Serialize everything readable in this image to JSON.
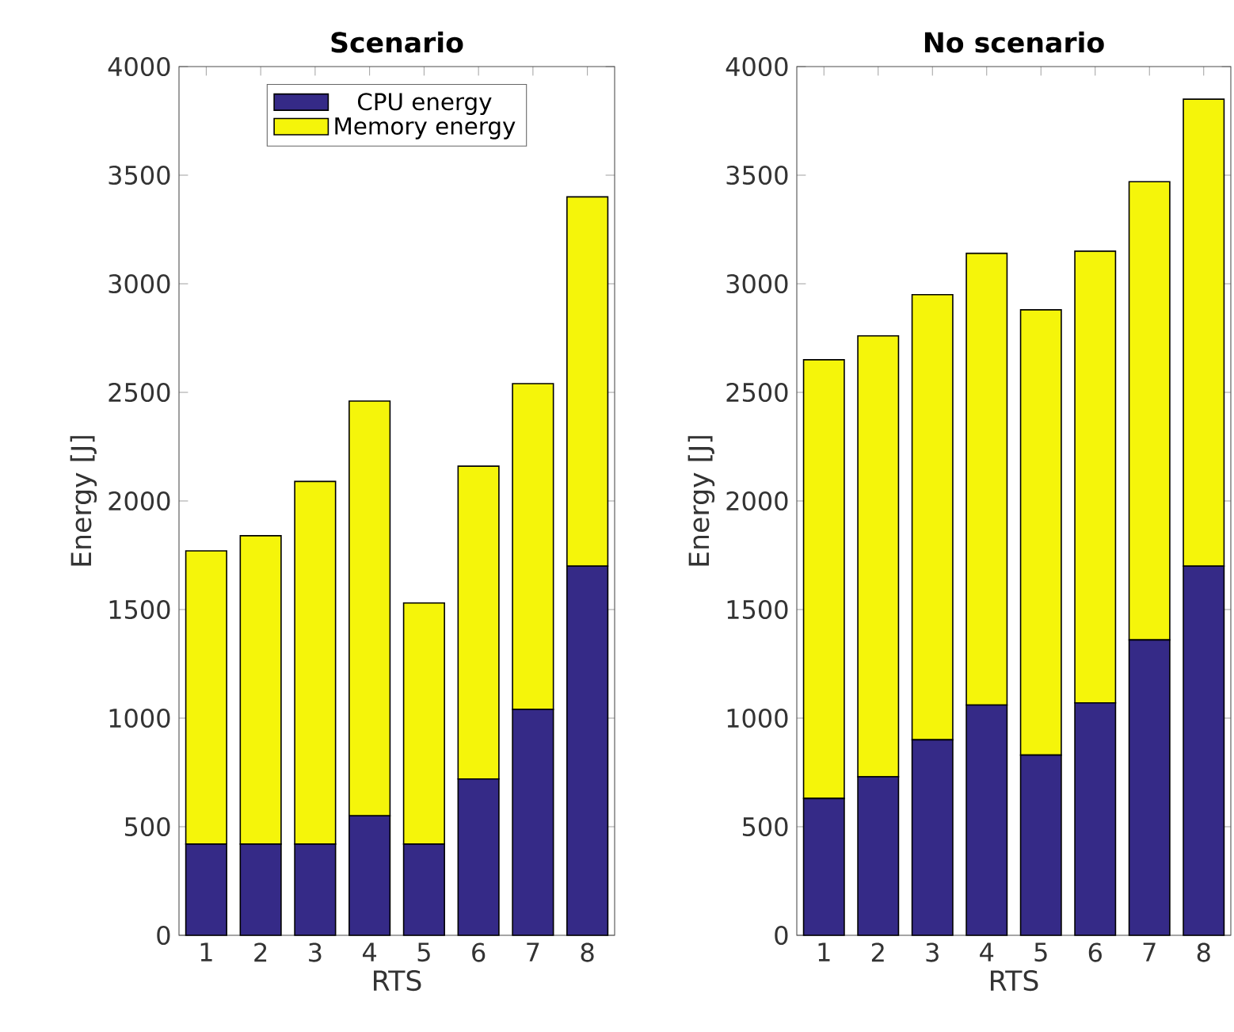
{
  "chart_data": [
    {
      "type": "bar",
      "stacked": true,
      "title": "Scenario",
      "xlabel": "RTS",
      "ylabel": "Energy [J]",
      "categories": [
        "1",
        "2",
        "3",
        "4",
        "5",
        "6",
        "7",
        "8"
      ],
      "ylim": [
        0,
        4000
      ],
      "yticks": [
        0,
        500,
        1000,
        1500,
        2000,
        2500,
        3000,
        3500,
        4000
      ],
      "legend": "top",
      "series": [
        {
          "name": "CPU energy",
          "color": "#352a87",
          "values": [
            420,
            420,
            420,
            550,
            420,
            720,
            1040,
            1700
          ]
        },
        {
          "name": "Memory energy",
          "color": "#f5f50a",
          "values": [
            1350,
            1420,
            1670,
            1910,
            1110,
            1440,
            1500,
            1700
          ]
        }
      ]
    },
    {
      "type": "bar",
      "stacked": true,
      "title": "No scenario",
      "xlabel": "RTS",
      "ylabel": "Energy [J]",
      "categories": [
        "1",
        "2",
        "3",
        "4",
        "5",
        "6",
        "7",
        "8"
      ],
      "ylim": [
        0,
        4000
      ],
      "yticks": [
        0,
        500,
        1000,
        1500,
        2000,
        2500,
        3000,
        3500,
        4000
      ],
      "series": [
        {
          "color": "#352a87",
          "values": [
            630,
            730,
            900,
            1060,
            830,
            1070,
            1360,
            1700
          ]
        },
        {
          "color": "#f5f50a",
          "values": [
            2020,
            2030,
            2050,
            2080,
            2050,
            2080,
            2110,
            2150
          ]
        }
      ]
    }
  ]
}
